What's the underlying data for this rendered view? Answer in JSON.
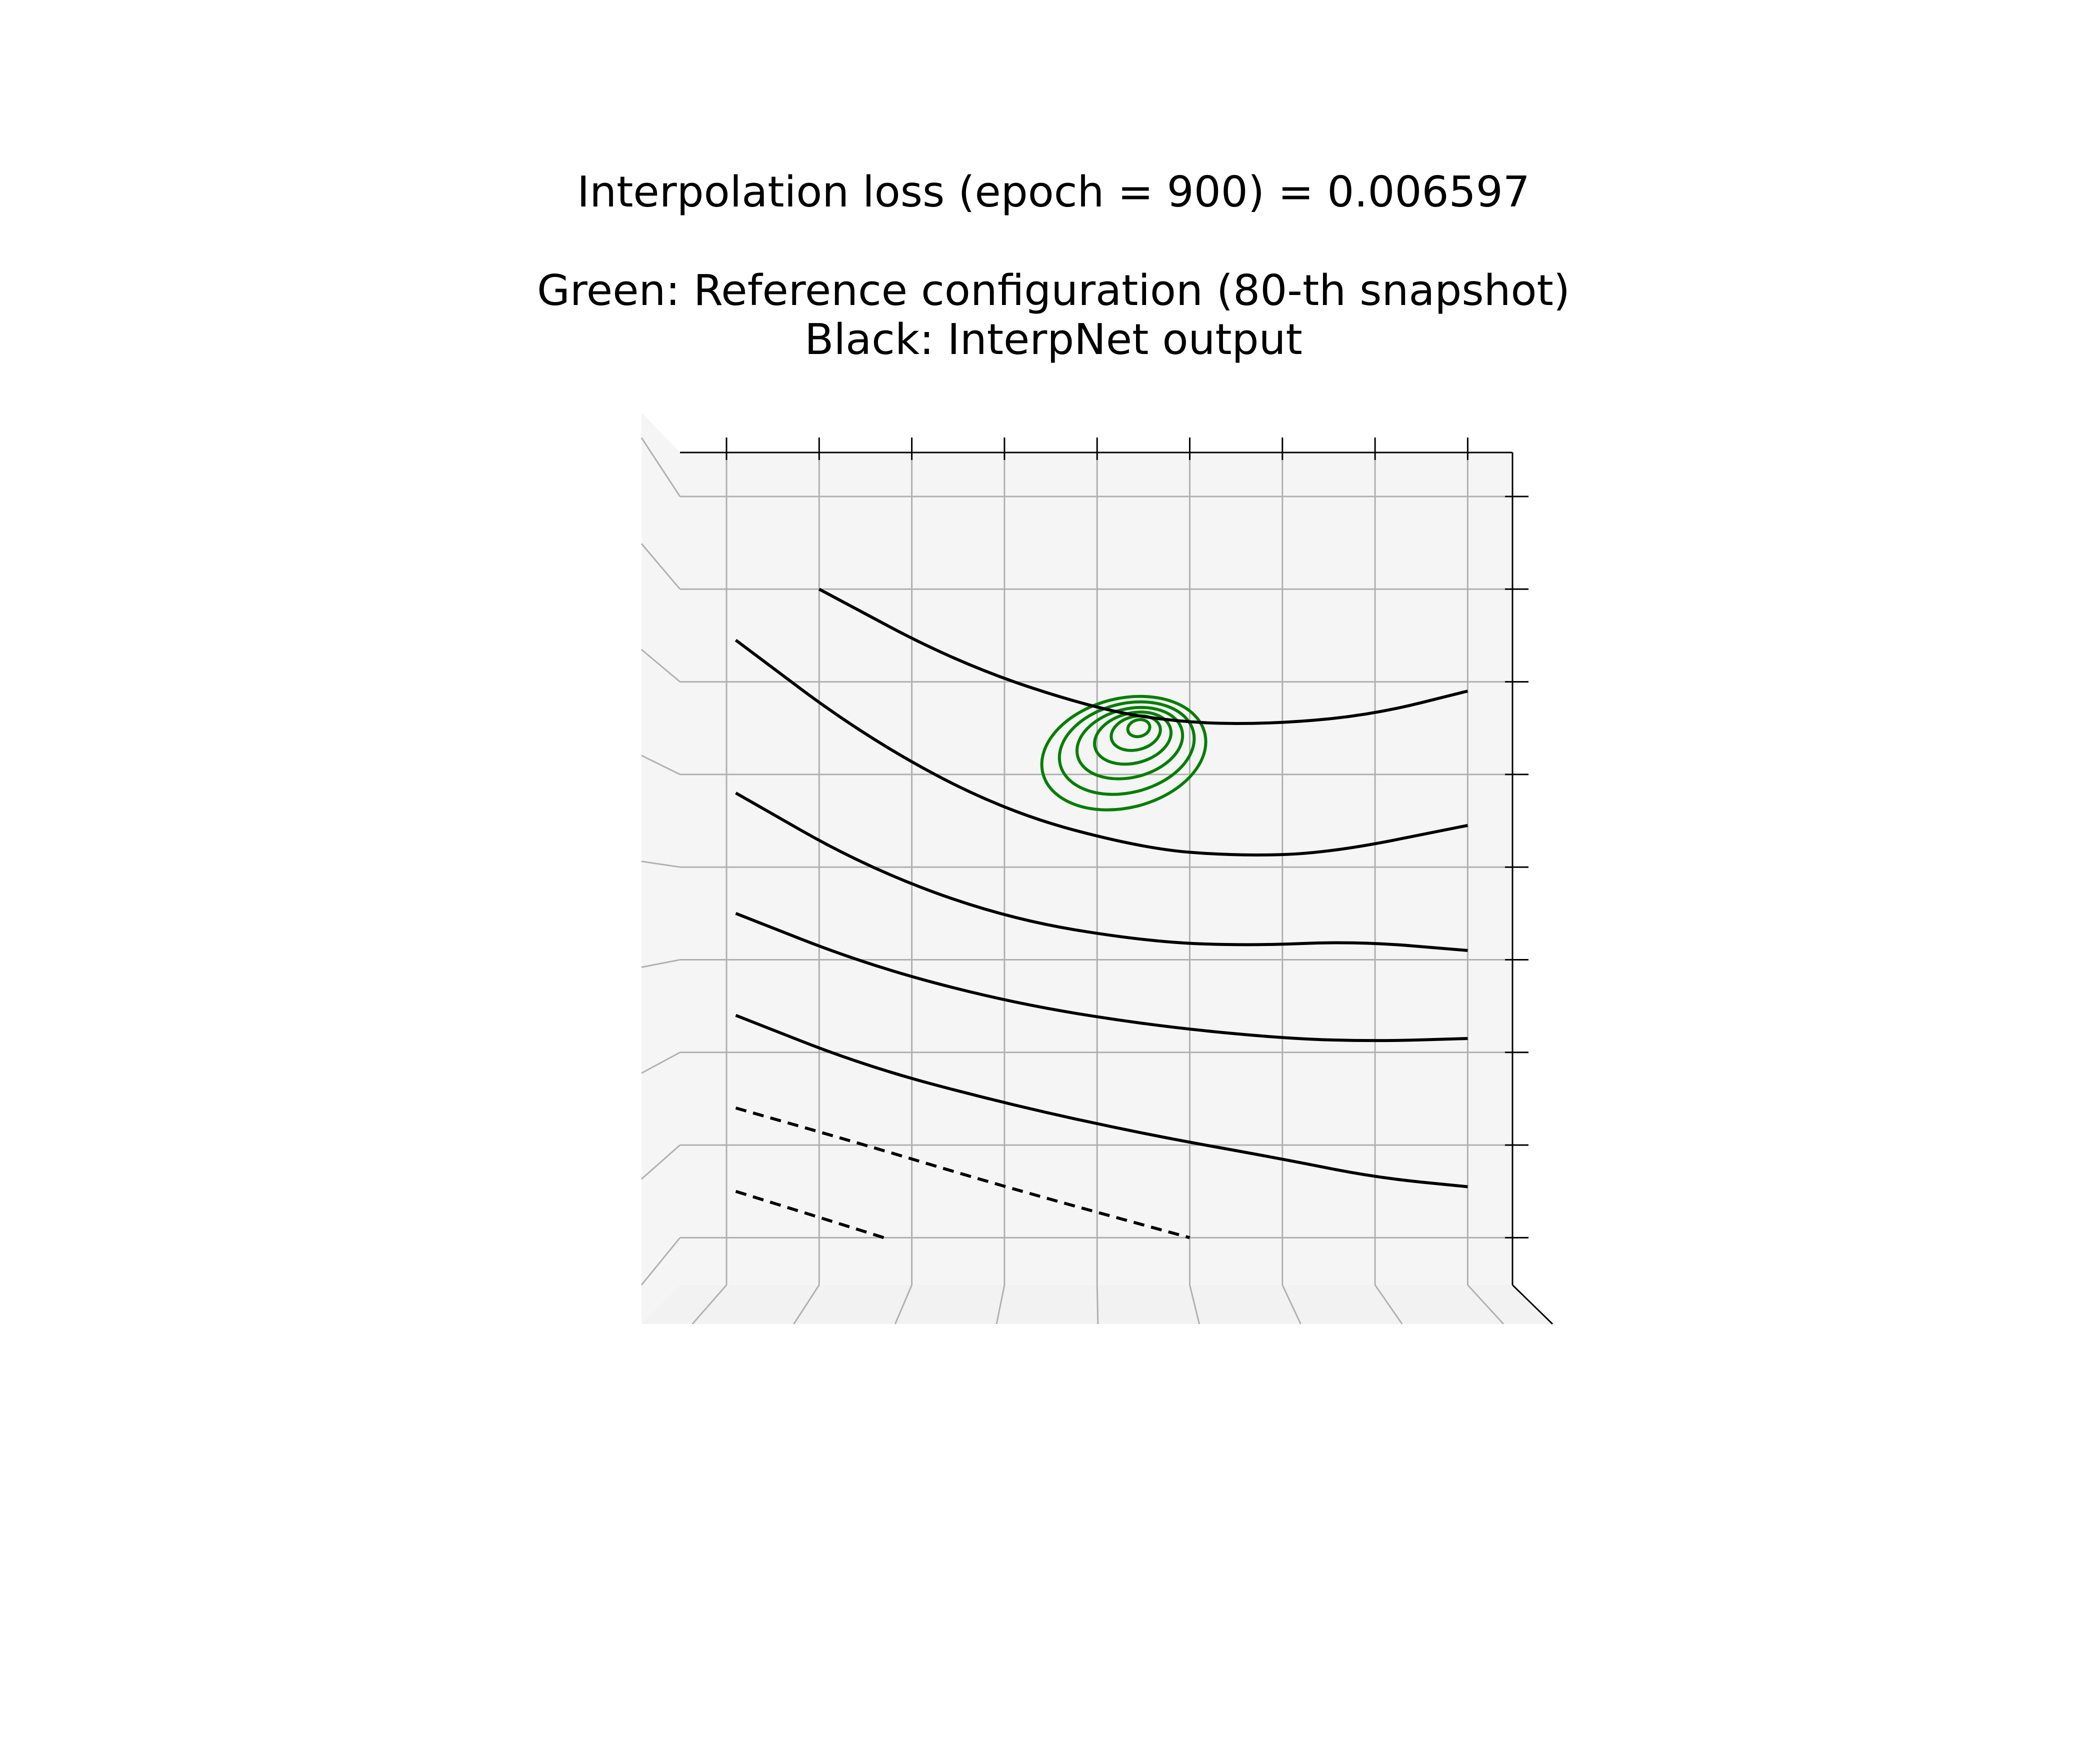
{
  "title": {
    "line1": "Interpolation loss (epoch = 900) = 0.006597",
    "line2": "Green: Reference configuration (80-th snapshot)",
    "line3": "Black: InterpNet output"
  },
  "colors": {
    "reference": "#007f00",
    "output": "#000000",
    "pane": "#f2f2f2",
    "pane_side": "#f5f5f5",
    "grid": "#b0b0b0"
  },
  "chart_data": {
    "type": "contour",
    "view": "3d-top-down",
    "grid": true,
    "axis_tick_labels_shown": false,
    "xlim": [
      0,
      9
    ],
    "ylim": [
      0,
      9
    ],
    "series": [
      {
        "name": "Green: Reference configuration (80-th snapshot)",
        "color": "#007f00",
        "kind": "nested-contours",
        "center": [
          4.45,
          6.5
        ],
        "levels": [
          {
            "rx": 0.12,
            "ry": 0.09
          },
          {
            "rx": 0.27,
            "ry": 0.18
          },
          {
            "rx": 0.42,
            "ry": 0.27
          },
          {
            "rx": 0.58,
            "ry": 0.37
          },
          {
            "rx": 0.74,
            "ry": 0.48
          },
          {
            "rx": 0.9,
            "ry": 0.59
          }
        ]
      },
      {
        "name": "Black: InterpNet output",
        "color": "#000000",
        "kind": "contour-lines",
        "lines": [
          {
            "style": "solid",
            "points": [
              [
                1.0,
                8.0
              ],
              [
                2.5,
                7.2
              ],
              [
                4.0,
                6.7
              ],
              [
                5.0,
                6.55
              ],
              [
                6.0,
                6.55
              ],
              [
                7.0,
                6.65
              ],
              [
                8.0,
                6.9
              ]
            ]
          },
          {
            "style": "solid",
            "points": [
              [
                0.1,
                7.45
              ],
              [
                1.5,
                6.4
              ],
              [
                3.0,
                5.6
              ],
              [
                4.5,
                5.2
              ],
              [
                5.5,
                5.12
              ],
              [
                6.5,
                5.15
              ],
              [
                8.0,
                5.45
              ]
            ]
          },
          {
            "style": "solid",
            "points": [
              [
                0.1,
                5.8
              ],
              [
                1.5,
                5.0
              ],
              [
                3.0,
                4.45
              ],
              [
                4.5,
                4.2
              ],
              [
                5.6,
                4.15
              ],
              [
                6.8,
                4.2
              ],
              [
                8.0,
                4.1
              ]
            ]
          },
          {
            "style": "solid",
            "points": [
              [
                0.1,
                4.5
              ],
              [
                1.5,
                3.95
              ],
              [
                3.0,
                3.55
              ],
              [
                4.5,
                3.3
              ],
              [
                6.0,
                3.15
              ],
              [
                7.0,
                3.12
              ],
              [
                8.0,
                3.15
              ]
            ]
          },
          {
            "style": "solid",
            "points": [
              [
                0.1,
                3.4
              ],
              [
                1.5,
                2.85
              ],
              [
                3.0,
                2.45
              ],
              [
                4.5,
                2.12
              ],
              [
                6.0,
                1.85
              ],
              [
                7.0,
                1.65
              ],
              [
                8.0,
                1.55
              ]
            ]
          },
          {
            "style": "dashed",
            "points": [
              [
                0.1,
                2.4
              ],
              [
                1.5,
                2.0
              ],
              [
                3.0,
                1.55
              ],
              [
                5.0,
                1.0
              ]
            ]
          },
          {
            "style": "dashed",
            "points": [
              [
                0.1,
                1.5
              ],
              [
                1.0,
                1.22
              ],
              [
                1.7,
                1.0
              ]
            ]
          }
        ]
      }
    ]
  }
}
